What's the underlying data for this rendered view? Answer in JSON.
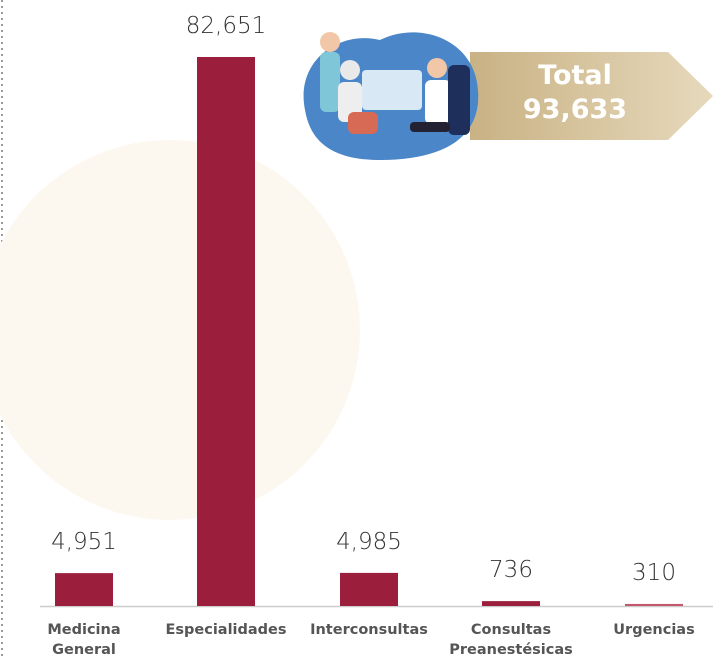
{
  "chart_data": {
    "type": "bar",
    "categories": [
      "Medicina General",
      "Especialidades",
      "Interconsultas",
      "Consultas Preanestésicas",
      "Urgencias"
    ],
    "values": [
      4951,
      82651,
      4985,
      736,
      310
    ],
    "value_labels": [
      "4,951",
      "82,651",
      "4,985",
      "736",
      "310"
    ],
    "colors": [
      "#9b1f3d",
      "#9b1f3d",
      "#9b1f3d",
      "#9b1f3d",
      "#c4566e"
    ],
    "total_title": "Total",
    "total_value": "93,633"
  }
}
